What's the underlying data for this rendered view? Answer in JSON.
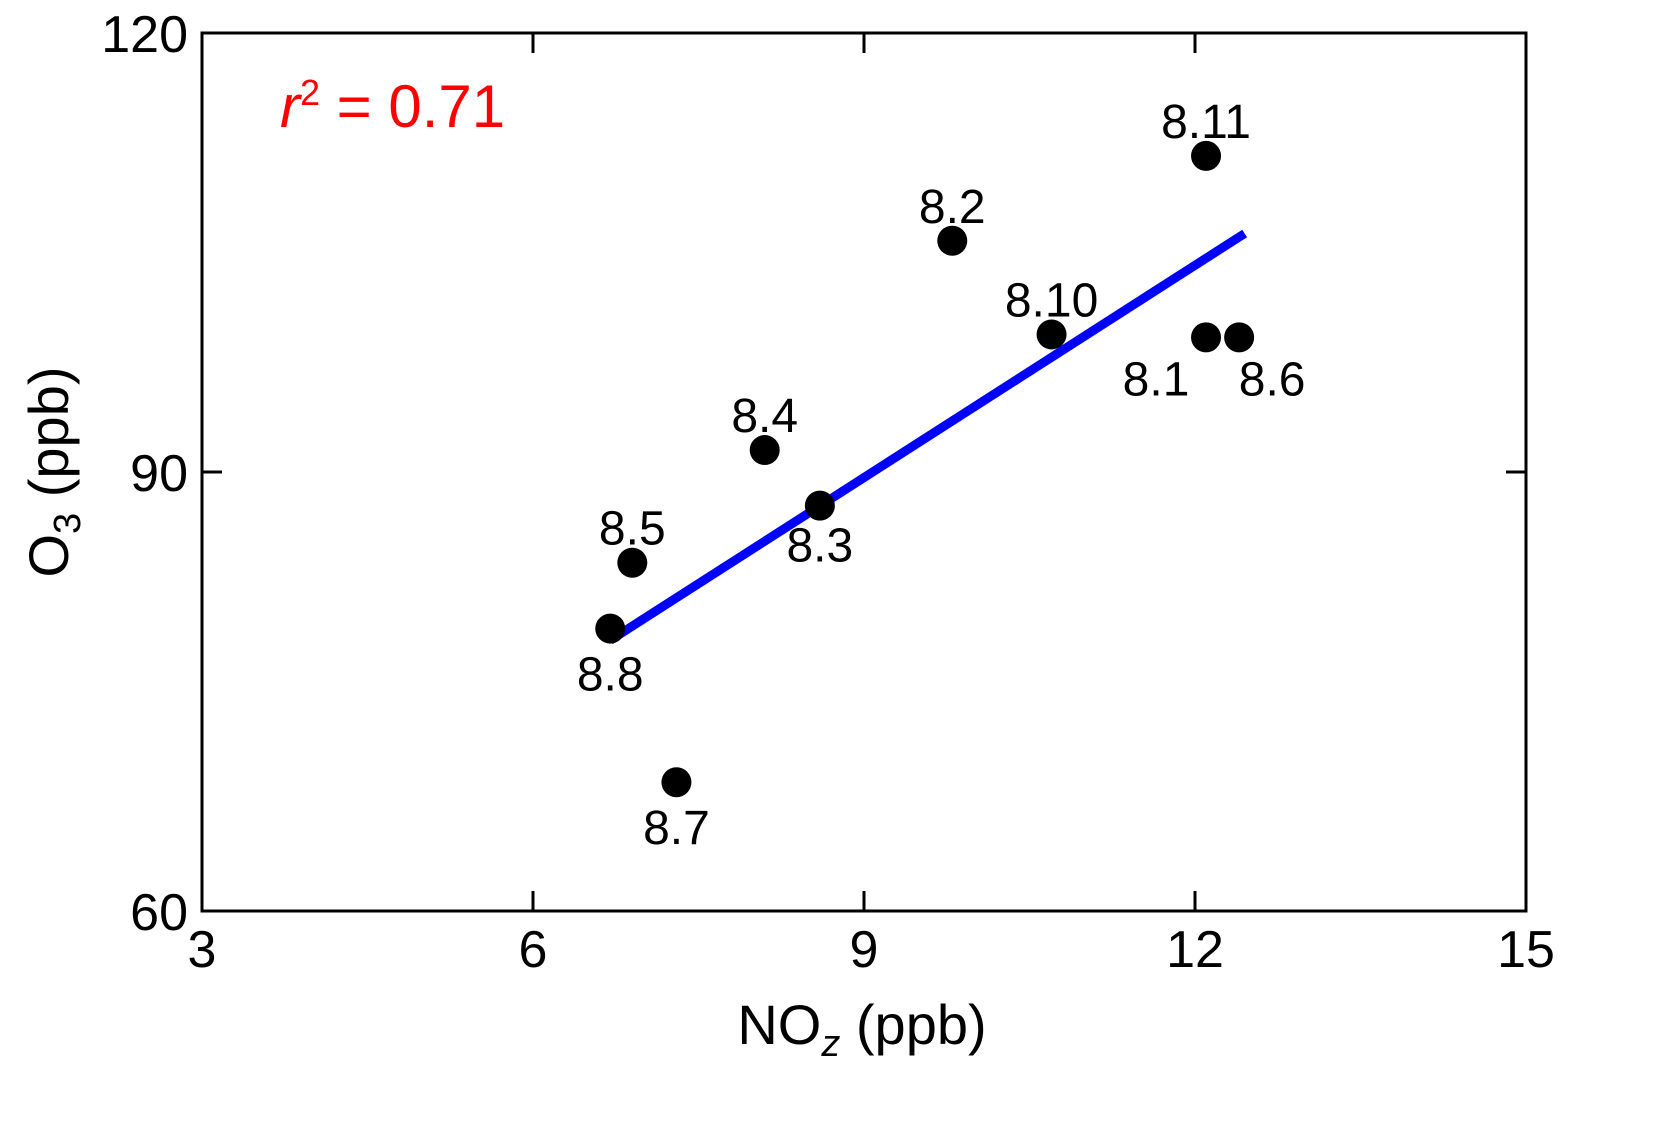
{
  "chart_data": {
    "type": "scatter",
    "xlabel": {
      "main": "NO",
      "sub": "z",
      "unit": " (ppb)"
    },
    "ylabel": {
      "main": "O",
      "sub": "3",
      "unit": " (ppb)"
    },
    "xlim": [
      3,
      15
    ],
    "ylim": [
      60,
      120
    ],
    "xticks": [
      3,
      6,
      9,
      12,
      15
    ],
    "yticks": [
      60,
      90,
      120
    ],
    "xtick_labels": [
      "3",
      "6",
      "9",
      "12",
      "15"
    ],
    "ytick_labels": [
      "60",
      "90",
      "120"
    ],
    "grid": false,
    "points": [
      {
        "label": "8.1",
        "x": 12.1,
        "y": 99.2
      },
      {
        "label": "8.2",
        "x": 9.8,
        "y": 105.8
      },
      {
        "label": "8.3",
        "x": 8.6,
        "y": 87.7
      },
      {
        "label": "8.4",
        "x": 8.1,
        "y": 91.5
      },
      {
        "label": "8.5",
        "x": 6.9,
        "y": 83.8
      },
      {
        "label": "8.6",
        "x": 12.4,
        "y": 99.2
      },
      {
        "label": "8.7",
        "x": 7.3,
        "y": 68.8
      },
      {
        "label": "8.8",
        "x": 6.7,
        "y": 79.3
      },
      {
        "label": "8.10",
        "x": 10.7,
        "y": 99.4
      },
      {
        "label": "8.11",
        "x": 12.1,
        "y": 111.6
      }
    ],
    "fit_line": {
      "x": [
        6.7,
        12.45
      ],
      "y": [
        78.5,
        106.3
      ]
    },
    "annotation": {
      "var": "r",
      "sup": "2",
      "text": " = 0.71"
    },
    "colors": {
      "points": "#000000",
      "fit_line": "#0000ff",
      "annotation": "#ff0000"
    }
  }
}
